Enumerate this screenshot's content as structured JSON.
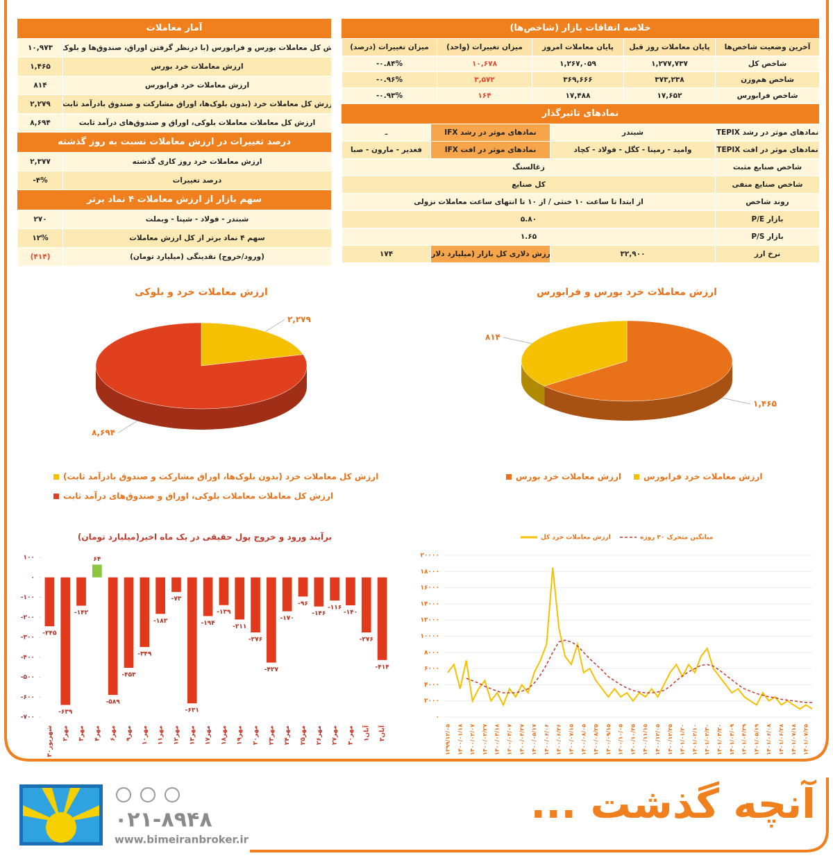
{
  "market_summary": {
    "title": "خلاصه اتفاقات بازار (شاخص‌ها)",
    "headers": [
      "آخرین وضعیت شاخص‌ها",
      "پایان معاملات روز قبل",
      "پایان معاملات امروز",
      "میزان تغییرات (واحد)",
      "میزان تغییرات (درصد)"
    ],
    "rows": [
      [
        "شاخص کل",
        "۱,۲۷۷,۷۳۷",
        "۱,۲۶۷,۰۵۹",
        "۱۰,۶۷۸",
        "-۰.۸۴%"
      ],
      [
        "شاخص هم‌وزن",
        "۳۷۳,۲۳۸",
        "۳۶۹,۶۶۶",
        "۳,۵۷۲",
        "-۰.۹۶%"
      ],
      [
        "شاخص فرابورس",
        "۱۷,۶۵۲",
        "۱۷,۴۸۸",
        "۱۶۴",
        "-۰.۹۳%"
      ]
    ]
  },
  "influential": {
    "title": "نمادهای تاثیرگذار",
    "rows": [
      [
        "نمادهای موثر در رشد TEPIX",
        "شبندر",
        "نمادهای موثر در رشد IFX",
        "ـ"
      ],
      [
        "نمادهای موثر در افت TEPIX",
        "وامید - رمپنا - کگل - فولاد - کچاد",
        "نمادهای موثر در افت IFX",
        "فغدیر - مارون - صبا"
      ],
      [
        "شاخص صنایع مثبت",
        "زغالسنگ"
      ],
      [
        "شاخص صنایع منفی",
        "کل صنایع"
      ],
      [
        "روند شاخص",
        "از ابتدا تا ساعت ۱۰ خنثی / از ۱۰ تا انتهای ساعت معاملات نزولی"
      ],
      [
        "بازار P/E",
        "۵.۸۰"
      ],
      [
        "بازار P/S",
        "۱.۶۵"
      ],
      [
        "نرخ ارز",
        "۳۲,۹۰۰",
        "ارزش دلاری کل بازار (میلیارد دلار)",
        "۱۷۴"
      ]
    ]
  },
  "trade_stats": {
    "title": "آمار معاملات",
    "rows": [
      [
        "ارزش کل معاملات بورس و فرابورس (با درنظر گرفتن اوراق، صندوق‌ها و بلوک‌ها)",
        "۱۰,۹۷۳"
      ],
      [
        "ارزش معاملات خرد بورس",
        "۱,۴۶۵"
      ],
      [
        "ارزش معاملات خرد فرابورس",
        "۸۱۴"
      ],
      [
        "ارزش کل معاملات خرد (بدون بلوک‌ها، اوراق مشارکت و صندوق بادرآمد ثابت)",
        "۲,۲۷۹"
      ],
      [
        "ارزش کل معاملات معاملات بلوکی، اوراق و صندوق‌های درآمد ثابت",
        "۸,۶۹۴"
      ]
    ]
  },
  "change": {
    "title": "درصد تغییرات در ارزش معاملات نسبت به روز گذشته",
    "rows": [
      [
        "ارزش معاملات خرد روز کاری گذشته",
        "۲,۳۷۷"
      ],
      [
        "درصد تغییرات",
        "-۴%"
      ]
    ]
  },
  "top4": {
    "title": "سهم بازار از ارزش معاملات ۴ نماد برتر",
    "rows": [
      [
        "شبندر - فولاد - شپنا - وبملت",
        "۲۷۰"
      ],
      [
        "سهم ۴ نماد برتر از کل ارزش معاملات",
        "۱۲%"
      ],
      [
        "(ورود/خروج) نقدینگی (میلیارد تومان)",
        "(۴۱۴)"
      ]
    ]
  },
  "chart_data": [
    {
      "type": "pie",
      "title": "ارزش معاملات خرد بورس و فرابورس",
      "labels": [
        "ارزش معاملات خرد بورس",
        "ارزش معاملات خرد فرابورس"
      ],
      "values": [
        1465,
        814
      ],
      "value_labels": [
        "۱,۴۶۵",
        "۸۱۴"
      ],
      "colors": [
        "#e8711a",
        "#f5c000"
      ]
    },
    {
      "type": "pie",
      "title": "ارزش معاملات خرد و بلوکی",
      "labels": [
        "ارزش کل معاملات خرد (بدون بلوک‌ها، اوراق مشارکت و صندوق بادرآمد ثابت)",
        "ارزش کل معاملات معاملات بلوکی، اوراق و صندوق‌های درآمد ثابت"
      ],
      "values": [
        2279,
        8694
      ],
      "value_labels": [
        "۲,۲۷۹",
        "۸,۶۹۴"
      ],
      "colors": [
        "#f5c000",
        "#e0401e"
      ]
    },
    {
      "type": "bar",
      "title": "برآیند ورود و خروج پول حقیقی در یک ماه اخیر(میلیارد تومان)",
      "categories": [
        "۳۰شهریور",
        "۲مهر",
        "۳مهر",
        "۴مهر",
        "۶مهر",
        "۹مهر",
        "۱۰مهر",
        "۱۱مهر",
        "۱۲مهر",
        "۱۳مهر",
        "۱۷مهر",
        "۱۸مهر",
        "۱۹مهر",
        "۲۰مهر",
        "۲۳مهر",
        "۲۴مهر",
        "۲۵مهر",
        "۲۶مهر",
        "۲۷مهر",
        "۳۰مهر",
        "۱آبان",
        "۳آبان"
      ],
      "values": [
        -245,
        -639,
        -142,
        64,
        -589,
        -453,
        -349,
        -183,
        -73,
        -631,
        -194,
        -139,
        -211,
        -276,
        -427,
        -170,
        -96,
        -146,
        -116,
        -140,
        -276,
        -414
      ],
      "value_labels": [
        "-۲۴۵",
        "-۶۳۹",
        "-۱۴۲",
        "۶۴",
        "-۵۸۹",
        "-۴۵۳",
        "-۳۴۹",
        "-۱۸۳",
        "-۷۳",
        "-۶۳۱",
        "-۱۹۴",
        "-۱۳۹",
        "-۲۱۱",
        "-۲۷۶",
        "-۴۲۷",
        "-۱۷۰",
        "-۹۶",
        "-۱۴۶",
        "-۱۱۶",
        "-۱۴۰",
        "-۲۷۶",
        "-۴۱۴"
      ],
      "color": "#e0391c",
      "positive_color": "#8cc63f",
      "ylim": [
        -700,
        100
      ],
      "yticks": [
        {
          "value": 100,
          "label": "۱۰۰"
        },
        {
          "value": 0,
          "label": "۰"
        },
        {
          "value": -100,
          "label": "-۱۰۰"
        },
        {
          "value": -200,
          "label": "-۲۰۰"
        },
        {
          "value": -300,
          "label": "-۳۰۰"
        },
        {
          "value": -400,
          "label": "-۴۰۰"
        },
        {
          "value": -500,
          "label": "-۵۰۰"
        },
        {
          "value": -600,
          "label": "-۶۰۰"
        },
        {
          "value": -700,
          "label": "-۷۰۰"
        }
      ],
      "grid": false
    },
    {
      "type": "line",
      "x": [
        "۱۳۹۹/۱۲/۰۵",
        null,
        "۱۴۰۰/۰۱/۱۸",
        null,
        "۱۴۰۰/۰۲/۰۷",
        null,
        "۱۴۰۰/۰۲/۲۷",
        null,
        "۱۴۰۰/۰۳/۱۸",
        null,
        "۱۴۰۰/۰۴/۰۷",
        null,
        "۱۴۰۰/۰۴/۲۷",
        null,
        "۱۴۰۰/۰۵/۱۷",
        null,
        "۱۴۰۰/۰۶/۰۶",
        null,
        "۱۴۰۰/۰۶/۲۶",
        null,
        "۱۴۰۰/۰۷/۱۵",
        null,
        "۱۴۰۰/۰۸/۰۵",
        null,
        "۱۴۰۰/۰۸/۲۵",
        null,
        "۱۴۰۰/۰۹/۱۵",
        null,
        "۱۴۰۰/۱۰/۰۵",
        null,
        "۱۴۰۰/۱۰/۲۵",
        null,
        "۱۴۰۰/۱۱/۱۵",
        null,
        "۱۴۰۰/۱۲/۰۵",
        null,
        "۱۴۰۰/۱۲/۲۵",
        null,
        "۱۴۰۱/۰۱/۲۰",
        null,
        "۱۴۰۱/۰۲/۱۰",
        null,
        "۱۴۰۱/۰۲/۳۰",
        null,
        "۱۴۰۱/۰۳/۲۰",
        null,
        "۱۴۰۱/۰۴/۰۹",
        null,
        "۱۴۰۱/۰۴/۲۹",
        null,
        "۱۴۰۱/۰۵/۱۹",
        null,
        "۱۴۰۱/۰۶/۰۸",
        null,
        "۱۴۰۱/۰۶/۲۸",
        null,
        "۱۴۰۱/۰۷/۱۸",
        null,
        "۱۴۰۱/۰۷/۲۵",
        null
      ],
      "series": [
        {
          "name": "ارزش معاملات خرد کل",
          "color": "#f5c000",
          "values": [
            5500,
            6500,
            3500,
            7000,
            2000,
            3500,
            4500,
            2000,
            3000,
            1500,
            3500,
            2500,
            4000,
            3000,
            5500,
            7000,
            9000,
            18500,
            11000,
            7500,
            6500,
            9000,
            5500,
            6000,
            4500,
            3500,
            2500,
            3500,
            2500,
            3000,
            2000,
            3000,
            2500,
            3500,
            2500,
            4000,
            5500,
            6500,
            5000,
            6500,
            5500,
            7500,
            8500,
            6000,
            5000,
            4000,
            3000,
            3500,
            2500,
            2000,
            1500,
            3000,
            2000,
            2500,
            1500,
            2000,
            1500,
            1000,
            1500,
            1000
          ]
        },
        {
          "name": "میانگین متحرک ۳۰ روزه",
          "color": "#c0392b",
          "dashed": true,
          "values": [
            null,
            null,
            null,
            4800,
            4500,
            4200,
            3800,
            3500,
            3200,
            3000,
            3000,
            3000,
            3200,
            3500,
            4200,
            5200,
            6500,
            8000,
            9300,
            9500,
            9300,
            8800,
            8000,
            7200,
            6500,
            5800,
            5000,
            4500,
            4000,
            3600,
            3300,
            3100,
            3000,
            3000,
            3100,
            3300,
            3800,
            4500,
            5100,
            5600,
            6000,
            6400,
            6500,
            6300,
            5800,
            5200,
            4600,
            4000,
            3500,
            3200,
            2900,
            2700,
            2500,
            2400,
            2200,
            2100,
            2000,
            1900,
            1800,
            1800
          ]
        }
      ],
      "ylim": [
        0,
        20000
      ],
      "yticks": [
        {
          "value": 0,
          "label": "۰"
        },
        {
          "value": 2000,
          "label": "۲۰۰۰"
        },
        {
          "value": 4000,
          "label": "۴۰۰۰"
        },
        {
          "value": 6000,
          "label": "۶۰۰۰"
        },
        {
          "value": 8000,
          "label": "۸۰۰۰"
        },
        {
          "value": 10000,
          "label": "۱۰۰۰۰"
        },
        {
          "value": 12000,
          "label": "۱۲۰۰۰"
        },
        {
          "value": 14000,
          "label": "۱۴۰۰۰"
        },
        {
          "value": 16000,
          "label": "۱۶۰۰۰"
        },
        {
          "value": 18000,
          "label": "۱۸۰۰۰"
        },
        {
          "value": 20000,
          "label": "۲۰۰۰۰"
        }
      ],
      "grid": true
    }
  ],
  "footer": {
    "slogan": "آنچه گذشت ...",
    "phone": "۰۲۱-۸۹۴۸",
    "website": "www.bimeiranbroker.ir"
  }
}
